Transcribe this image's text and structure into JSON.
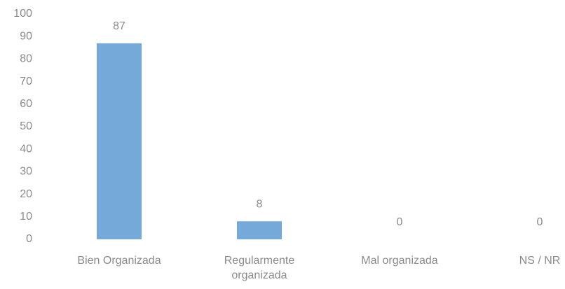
{
  "chart_data": {
    "type": "bar",
    "categories": [
      "Bien Organizada",
      "Regularmente organizada",
      "Mal organizada",
      "NS / NR"
    ],
    "values": [
      87,
      8,
      0,
      0
    ],
    "color": "#74a9d9",
    "ylim": [
      0,
      100
    ],
    "yticks": [
      0,
      10,
      20,
      30,
      40,
      50,
      60,
      70,
      80,
      90,
      100
    ]
  }
}
